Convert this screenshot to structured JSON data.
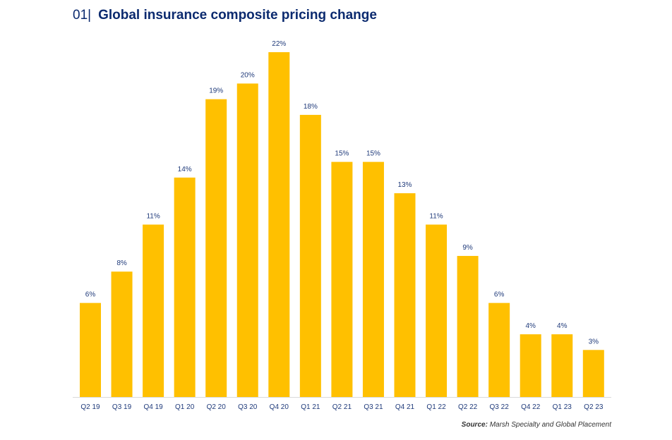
{
  "header": {
    "number": "01",
    "separator": "|",
    "title": "Global insurance composite pricing change"
  },
  "source": {
    "label": "Source:",
    "text": "Marsh Specialty and Global Placement"
  },
  "colors": {
    "bar": "#FFC000",
    "label": "#1f3a7a",
    "axis": "#d9d9d9",
    "title": "#0b2a6f"
  },
  "chart_data": {
    "type": "bar",
    "title": "Global insurance composite pricing change",
    "xlabel": "",
    "ylabel": "",
    "categories": [
      "Q2 19",
      "Q3 19",
      "Q4 19",
      "Q1 20",
      "Q2 20",
      "Q3 20",
      "Q4 20",
      "Q1 21",
      "Q2 21",
      "Q3 21",
      "Q4 21",
      "Q1 22",
      "Q2 22",
      "Q3 22",
      "Q4 22",
      "Q1 23",
      "Q2 23"
    ],
    "values": [
      6,
      8,
      11,
      14,
      19,
      20,
      22,
      18,
      15,
      15,
      13,
      11,
      9,
      6,
      4,
      4,
      3
    ],
    "data_labels": [
      "6%",
      "8%",
      "11%",
      "14%",
      "19%",
      "20%",
      "22%",
      "18%",
      "15%",
      "15%",
      "13%",
      "11%",
      "9%",
      "6%",
      "4%",
      "4%",
      "3%"
    ],
    "unit": "%",
    "ylim": [
      0,
      22
    ],
    "grid": false,
    "legend": "none"
  }
}
